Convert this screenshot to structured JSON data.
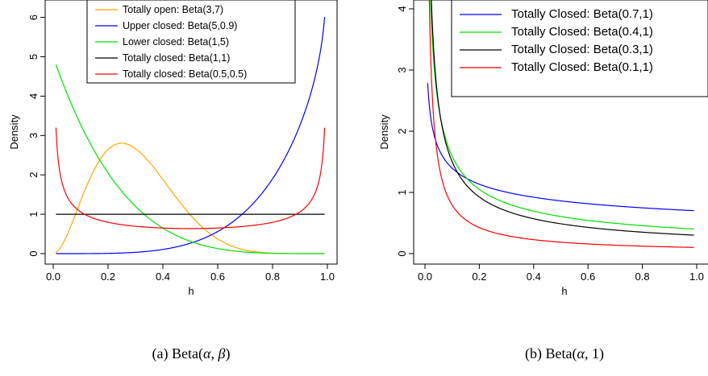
{
  "chart_data": [
    {
      "type": "line",
      "caption": "(a) Beta(α, β)",
      "xlabel": "h",
      "ylabel": "Density",
      "xlim": [
        0,
        1
      ],
      "ylim": [
        0,
        6.6
      ],
      "xticks": [
        "0.0",
        "0.2",
        "0.4",
        "0.6",
        "0.8",
        "1.0"
      ],
      "yticks": [
        "0",
        "1",
        "2",
        "3",
        "4",
        "5",
        "6"
      ],
      "legend_position": "top-right",
      "series": [
        {
          "name": "Totally open: Beta(3,7)",
          "alpha": 3,
          "beta": 7,
          "color": "#FFA500"
        },
        {
          "name": "Upper closed: Beta(5,0.9)",
          "alpha": 5,
          "beta": 0.9,
          "color": "#0000FF"
        },
        {
          "name": "Lower closed: Beta(1,5)",
          "alpha": 1,
          "beta": 5,
          "color": "#00E000"
        },
        {
          "name": "Totally closed: Beta(1,1)",
          "alpha": 1,
          "beta": 1,
          "color": "#000000"
        },
        {
          "name": "Totally closed: Beta(0.5,0.5)",
          "alpha": 0.5,
          "beta": 0.5,
          "color": "#FF0000"
        }
      ]
    },
    {
      "type": "line",
      "caption": "(b) Beta(α, 1)",
      "xlabel": "h",
      "ylabel": "Density",
      "xlim": [
        0,
        1
      ],
      "ylim": [
        0,
        4.1
      ],
      "xticks": [
        "0.0",
        "0.2",
        "0.4",
        "0.6",
        "0.8",
        "1.0"
      ],
      "yticks": [
        "0",
        "1",
        "2",
        "3",
        "4"
      ],
      "legend_position": "top-right",
      "series": [
        {
          "name": "Totally Closed: Beta(0.7,1)",
          "alpha": 0.7,
          "beta": 1,
          "color": "#0000FF"
        },
        {
          "name": "Totally Closed: Beta(0.4,1)",
          "alpha": 0.4,
          "beta": 1,
          "color": "#00E000"
        },
        {
          "name": "Totally Closed: Beta(0.3,1)",
          "alpha": 0.3,
          "beta": 1,
          "color": "#000000"
        },
        {
          "name": "Totally Closed: Beta(0.1,1)",
          "alpha": 0.1,
          "beta": 1,
          "color": "#FF0000"
        }
      ]
    }
  ]
}
